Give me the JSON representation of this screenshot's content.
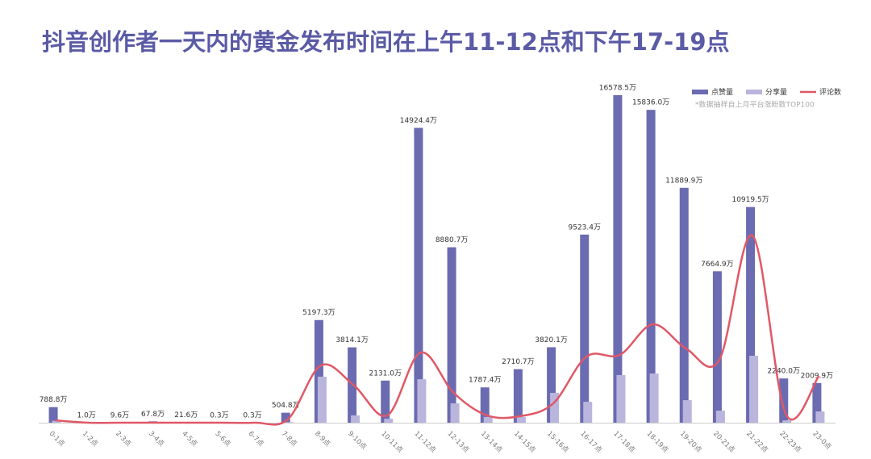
{
  "chart_data": {
    "type": "bar-line",
    "title": "抖音创作者一天内的黄金发布时间在上午11-12点和下午17-19点",
    "note": "*数据抽样自上月平台涨粉数TOP100",
    "categories": [
      "0-1点",
      "1-2点",
      "2-3点",
      "3-4点",
      "4-5点",
      "5-6点",
      "6-7点",
      "7-8点",
      "8-9点",
      "9-10点",
      "10-11点",
      "11-12点",
      "12-13点",
      "13-14点",
      "14-15点",
      "15-16点",
      "16-17点",
      "17-18点",
      "18-19点",
      "19-20点",
      "20-21点",
      "21-22点",
      "22-23点",
      "23-0点"
    ],
    "series": [
      {
        "name": "点赞量",
        "type": "bar",
        "color": "#6b6bb1",
        "values": [
          788.8,
          1.0,
          9.6,
          67.8,
          21.6,
          0.3,
          0.3,
          504.8,
          5197.3,
          3814.1,
          2131.0,
          14924.4,
          8880.7,
          1787.4,
          2710.7,
          3820.1,
          9523.4,
          16578.5,
          15836.0,
          11889.9,
          7664.9,
          10919.5,
          2240.0,
          2009.9
        ],
        "value_labels": [
          "788.8万",
          "1.0万",
          "9.6万",
          "67.8万",
          "21.6万",
          "0.3万",
          "0.3万",
          "504.8万",
          "5197.3万",
          "3814.1万",
          "2131.0万",
          "14924.4万",
          "8880.7万",
          "1787.4万",
          "2710.7万",
          "3820.1万",
          "9523.4万",
          "16578.5万",
          "15836.0万",
          "11889.9万",
          "7664.9万",
          "10919.5万",
          "2240.0万",
          "2009.9万"
        ]
      },
      {
        "name": "分享量",
        "type": "bar",
        "color": "#b9b5dd",
        "values": [
          100,
          0,
          0,
          0,
          0,
          0,
          0,
          30,
          2330,
          370,
          200,
          2200,
          980,
          290,
          290,
          1510,
          1060,
          2410,
          2490,
          1140,
          610,
          3390,
          120,
          570
        ]
      },
      {
        "name": "评论数",
        "type": "line",
        "color": "#e05866",
        "values": [
          120,
          0,
          0,
          0,
          0,
          0,
          0,
          160,
          2900,
          1880,
          370,
          3550,
          1510,
          370,
          330,
          980,
          3350,
          3430,
          4980,
          3750,
          3180,
          9470,
          450,
          2370
        ]
      }
    ]
  }
}
